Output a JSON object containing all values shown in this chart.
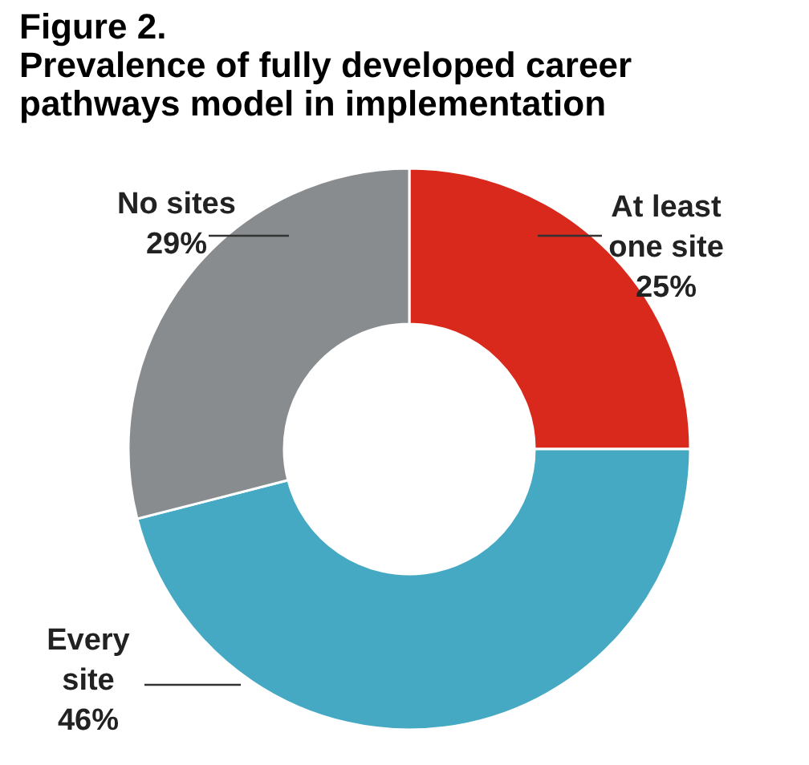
{
  "chart_data": {
    "type": "donut",
    "title": "Figure 2.",
    "subtitle": "Prevalence of fully developed career pathways model in implementation",
    "categories": [
      "At least one site",
      "Every site",
      "No sites"
    ],
    "values": [
      25,
      46,
      29
    ],
    "value_labels": [
      "25%",
      "46%",
      "29%"
    ],
    "colors": [
      "#d9291c",
      "#46a9c4",
      "#898c8e"
    ]
  }
}
